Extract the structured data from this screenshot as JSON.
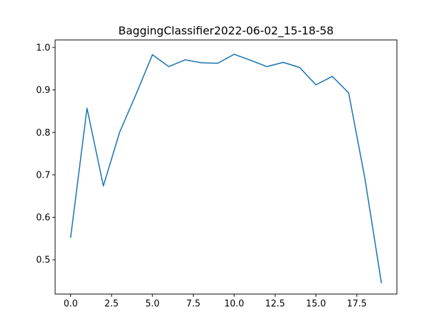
{
  "chart_data": {
    "type": "line",
    "title": "BaggingClassifier2022-06-02_15-18-58",
    "xlabel": "",
    "ylabel": "",
    "x": [
      0,
      1,
      2,
      3,
      4,
      5,
      6,
      7,
      8,
      9,
      10,
      11,
      12,
      13,
      14,
      15,
      16,
      17,
      18,
      19
    ],
    "series": [
      {
        "values": [
          0.553,
          0.857,
          0.674,
          0.801,
          0.89,
          0.983,
          0.955,
          0.971,
          0.964,
          0.963,
          0.984,
          0.97,
          0.955,
          0.965,
          0.953,
          0.912,
          0.932,
          0.893,
          0.69,
          0.446
        ],
        "color": "#1f77b4"
      }
    ],
    "xlim": [
      -0.95,
      19.95
    ],
    "ylim": [
      0.4192,
      1.0178
    ],
    "xticks": [
      0.0,
      2.5,
      5.0,
      7.5,
      10.0,
      12.5,
      15.0,
      17.5
    ],
    "xtick_labels": [
      "0.0",
      "2.5",
      "5.0",
      "7.5",
      "10.0",
      "12.5",
      "15.0",
      "17.5"
    ],
    "yticks": [
      0.5,
      0.6,
      0.7,
      0.8,
      0.9,
      1.0
    ],
    "ytick_labels": [
      "0.5",
      "0.6",
      "0.7",
      "0.8",
      "0.9",
      "1.0"
    ],
    "grid": false,
    "legend": "none"
  }
}
